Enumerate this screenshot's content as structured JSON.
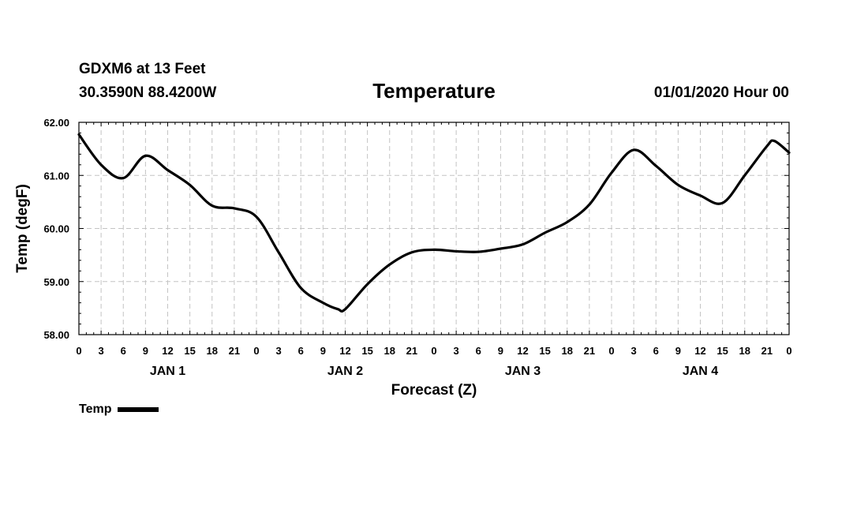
{
  "header": {
    "station": "GDXM6 at 13 Feet",
    "coords": "30.3590N 88.4200W",
    "datetime": "01/01/2020 Hour 00"
  },
  "chart_data": {
    "type": "line",
    "title": "Temperature",
    "xlabel": "Forecast (Z)",
    "ylabel": "Temp (degF)",
    "ylim": [
      58.0,
      62.0
    ],
    "yticks": [
      "58.00",
      "59.00",
      "60.00",
      "61.00",
      "62.00"
    ],
    "xlim": [
      0,
      96
    ],
    "hour_labels": [
      "0",
      "3",
      "6",
      "9",
      "12",
      "15",
      "18",
      "21",
      "0",
      "3",
      "6",
      "9",
      "12",
      "15",
      "18",
      "21",
      "0",
      "3",
      "6",
      "9",
      "12",
      "15",
      "18",
      "21",
      "0",
      "3",
      "6",
      "9",
      "12",
      "15",
      "18",
      "21",
      "0"
    ],
    "day_labels": [
      "JAN 1",
      "JAN 2",
      "JAN 3",
      "JAN 4"
    ],
    "grid": true,
    "legend_position": "bottom-left",
    "series": [
      {
        "name": "Temp",
        "color": "#000000",
        "x": [
          0,
          3,
          6,
          9,
          12,
          15,
          18,
          21,
          24,
          27,
          30,
          33,
          35,
          36,
          39,
          42,
          45,
          48,
          51,
          54,
          57,
          60,
          63,
          66,
          69,
          72,
          75,
          78,
          81,
          84,
          87,
          90,
          93,
          94,
          96
        ],
        "values": [
          61.77,
          61.2,
          60.95,
          61.37,
          61.1,
          60.82,
          60.43,
          60.38,
          60.22,
          59.55,
          58.88,
          58.6,
          58.48,
          58.48,
          58.95,
          59.32,
          59.55,
          59.6,
          59.57,
          59.56,
          59.62,
          59.7,
          59.92,
          60.12,
          60.45,
          61.05,
          61.48,
          61.18,
          60.82,
          60.62,
          60.48,
          61.0,
          61.55,
          61.65,
          61.43
        ]
      }
    ]
  },
  "legend": {
    "label": "Temp"
  }
}
